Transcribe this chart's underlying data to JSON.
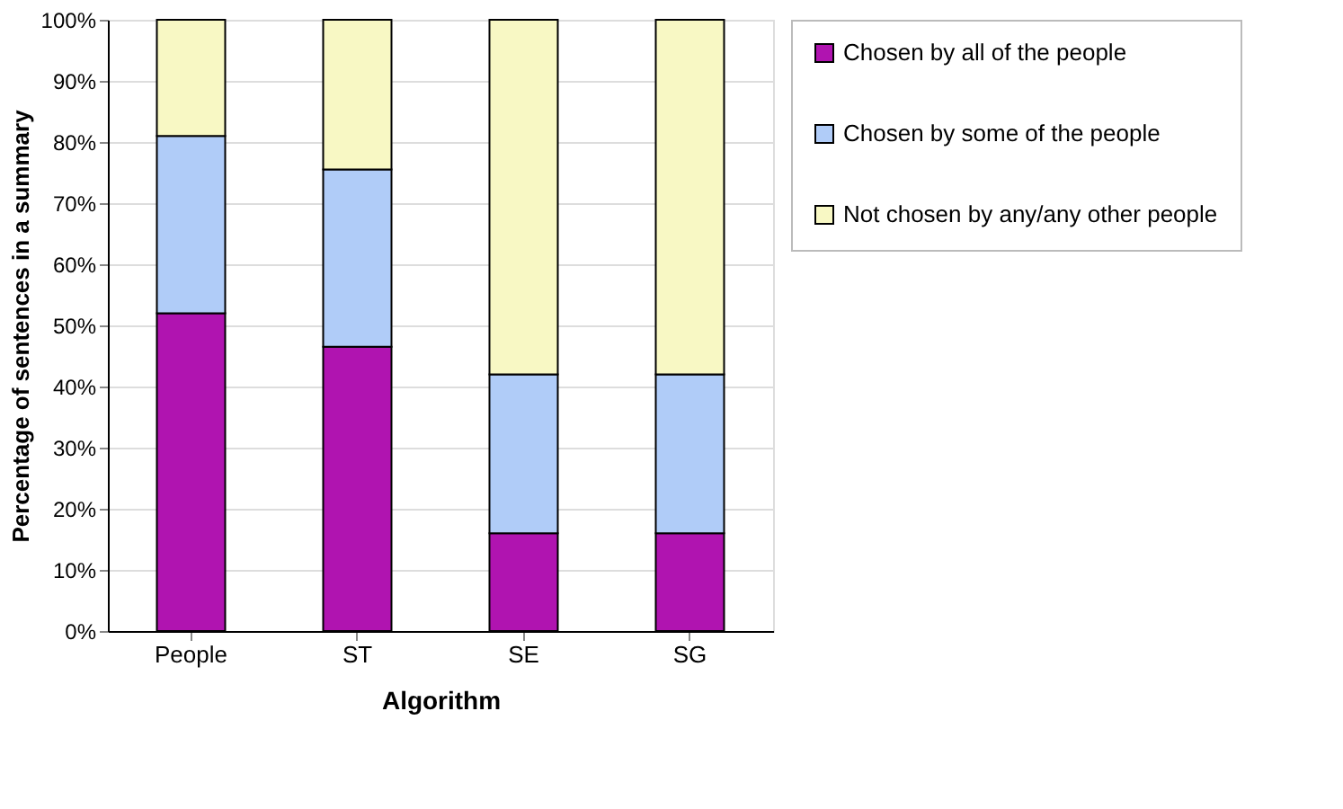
{
  "chart_data": {
    "type": "bar",
    "stacked": true,
    "xlabel": "Algorithm",
    "ylabel": "Percentage of sentences in a summary",
    "categories": [
      "People",
      "ST",
      "SE",
      "SG"
    ],
    "series": [
      {
        "name": "Chosen by all of the people",
        "color": "#b014b0",
        "values": [
          52,
          46.5,
          16,
          16
        ]
      },
      {
        "name": "Chosen by some of the people",
        "color": "#b0ccf8",
        "values": [
          29,
          29,
          26,
          26
        ]
      },
      {
        "name": "Not chosen by any/any other people",
        "color": "#f8f8c4",
        "values": [
          19,
          24.5,
          58,
          58
        ]
      }
    ],
    "ylim": [
      0,
      100
    ],
    "yticks": [
      {
        "value": 0,
        "label": "0%"
      },
      {
        "value": 10,
        "label": "10%"
      },
      {
        "value": 20,
        "label": "20%"
      },
      {
        "value": 30,
        "label": "30%"
      },
      {
        "value": 40,
        "label": "40%"
      },
      {
        "value": 50,
        "label": "50%"
      },
      {
        "value": 60,
        "label": "60%"
      },
      {
        "value": 70,
        "label": "70%"
      },
      {
        "value": 80,
        "label": "80%"
      },
      {
        "value": 90,
        "label": "90%"
      },
      {
        "value": 100,
        "label": "100%"
      }
    ],
    "grid": "y",
    "legend": "right"
  }
}
